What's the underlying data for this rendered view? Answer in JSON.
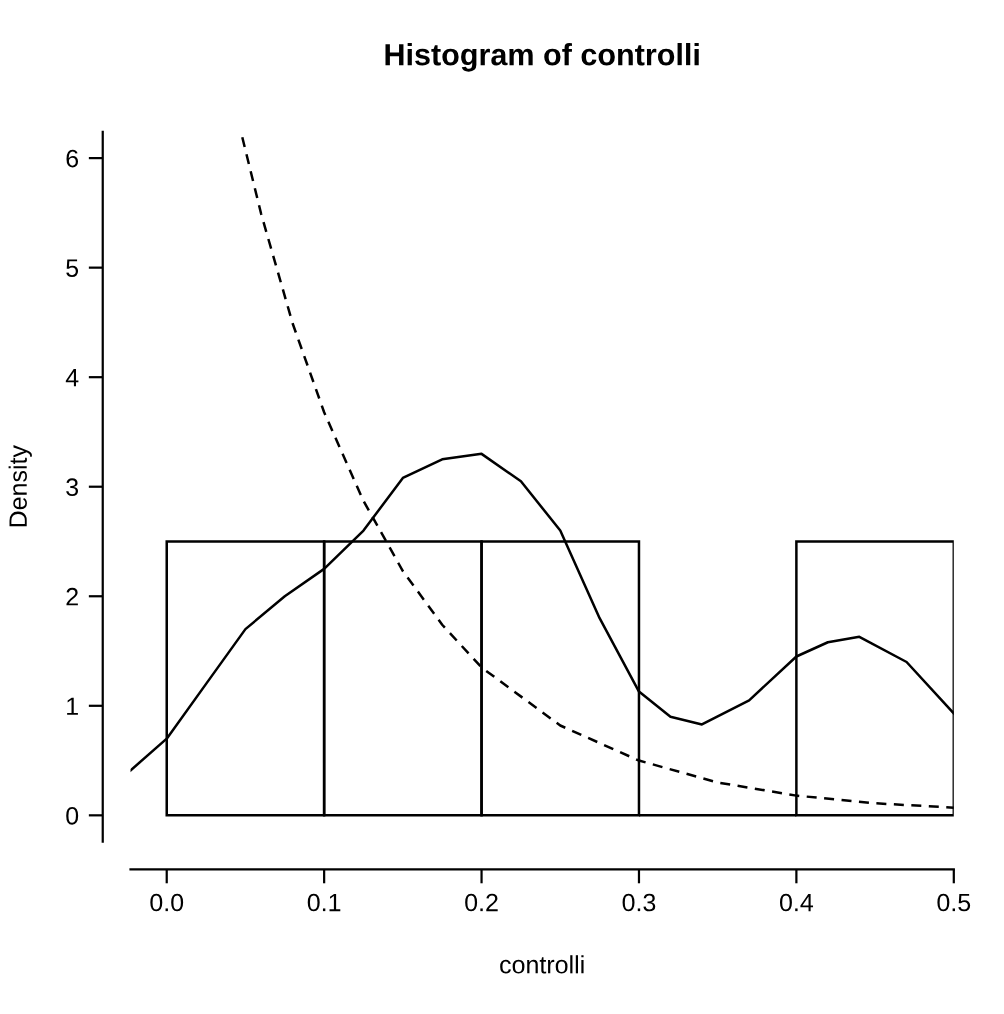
{
  "chart_data": {
    "type": "histogram",
    "title": "Histogram of controlli",
    "xlabel": "controlli",
    "ylabel": "Density",
    "bins": [
      0,
      0.1,
      0.2,
      0.3,
      0.4,
      0.5
    ],
    "values": [
      2.5,
      2.5,
      2.5,
      0,
      2.5
    ],
    "color": "#000000",
    "series": [
      {
        "type": "line",
        "color": "#000000",
        "line_style": "solid",
        "x": [
          -0.023,
          0,
          0.025,
          0.05,
          0.075,
          0.1,
          0.125,
          0.15,
          0.175,
          0.2,
          0.225,
          0.25,
          0.275,
          0.3,
          0.32,
          0.34,
          0.37,
          0.4,
          0.42,
          0.44,
          0.47,
          0.5
        ],
        "values": [
          0.41,
          0.7,
          1.2,
          1.7,
          2.0,
          2.25,
          2.6,
          3.08,
          3.25,
          3.3,
          3.05,
          2.6,
          1.8,
          1.13,
          0.9,
          0.83,
          1.05,
          1.45,
          1.58,
          1.63,
          1.4,
          0.93
        ]
      },
      {
        "type": "line",
        "color": "#000000",
        "line_style": "dashed",
        "x": [
          0.048,
          0.06,
          0.08,
          0.1,
          0.125,
          0.15,
          0.175,
          0.2,
          0.25,
          0.3,
          0.35,
          0.4,
          0.45,
          0.5
        ],
        "values": [
          6.19,
          5.49,
          4.49,
          3.68,
          2.87,
          2.23,
          1.74,
          1.35,
          0.82,
          0.5,
          0.3,
          0.18,
          0.11,
          0.07
        ]
      }
    ],
    "xlim": [
      -0.023,
      0.5
    ],
    "ylim": [
      -0.24,
      6.24
    ],
    "xticks": [
      {
        "value": 0,
        "label": "0.0"
      },
      0.1,
      0.2,
      0.3,
      0.4,
      0.5
    ],
    "yticks": [
      0,
      1,
      2,
      3,
      4,
      5,
      6
    ],
    "grid": false,
    "legend": false
  }
}
